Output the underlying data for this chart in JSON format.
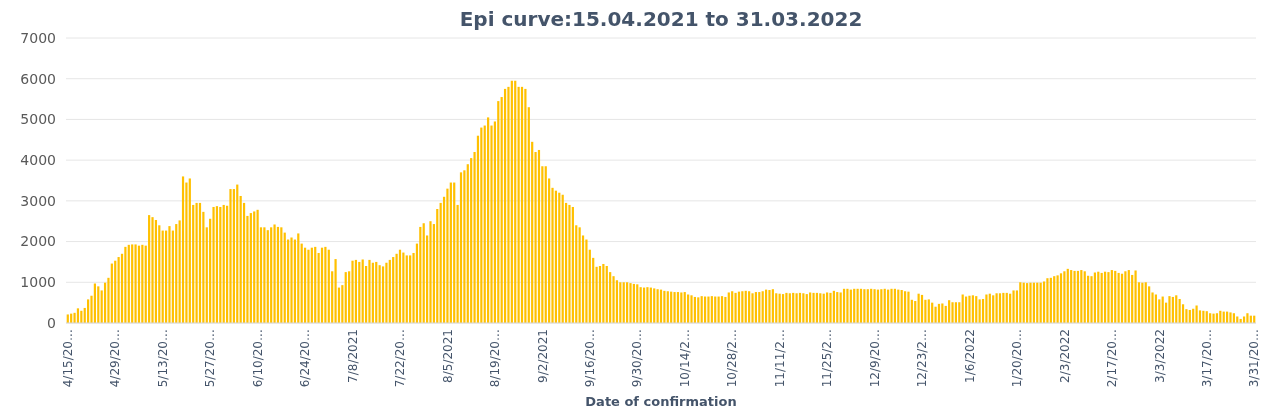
{
  "chart_data": {
    "type": "bar",
    "title": "Epi curve:15.04.2021  to 31.03.2022",
    "xlabel": "Date of confirmation",
    "categories": [
      "4/15/20…",
      null,
      null,
      null,
      null,
      null,
      null,
      null,
      null,
      null,
      null,
      null,
      null,
      null,
      "4/29/20…",
      null,
      null,
      null,
      null,
      null,
      null,
      null,
      null,
      null,
      null,
      null,
      null,
      null,
      "5/13/20…",
      null,
      null,
      null,
      null,
      null,
      null,
      null,
      null,
      null,
      null,
      null,
      null,
      null,
      "5/27/20…",
      null,
      null,
      null,
      null,
      null,
      null,
      null,
      null,
      null,
      null,
      null,
      null,
      null,
      "6/10/20…",
      null,
      null,
      null,
      null,
      null,
      null,
      null,
      null,
      null,
      null,
      null,
      null,
      null,
      "6/24/20…",
      null,
      null,
      null,
      null,
      null,
      null,
      null,
      null,
      null,
      null,
      null,
      null,
      null,
      "7/8/2021",
      null,
      null,
      null,
      null,
      null,
      null,
      null,
      null,
      null,
      null,
      null,
      null,
      null,
      "7/22/20…",
      null,
      null,
      null,
      null,
      null,
      null,
      null,
      null,
      null,
      null,
      null,
      null,
      null,
      "8/5/2021",
      null,
      null,
      null,
      null,
      null,
      null,
      null,
      null,
      null,
      null,
      null,
      null,
      null,
      "8/19/20…",
      null,
      null,
      null,
      null,
      null,
      null,
      null,
      null,
      null,
      null,
      null,
      null,
      null,
      "9/2/2021",
      null,
      null,
      null,
      null,
      null,
      null,
      null,
      null,
      null,
      null,
      null,
      null,
      null,
      "9/16/20…",
      null,
      null,
      null,
      null,
      null,
      null,
      null,
      null,
      null,
      null,
      null,
      null,
      null,
      "9/30/20…",
      null,
      null,
      null,
      null,
      null,
      null,
      null,
      null,
      null,
      null,
      null,
      null,
      null,
      "10/14/2…",
      null,
      null,
      null,
      null,
      null,
      null,
      null,
      null,
      null,
      null,
      null,
      null,
      null,
      "10/28/2…",
      null,
      null,
      null,
      null,
      null,
      null,
      null,
      null,
      null,
      null,
      null,
      null,
      null,
      "11/11/2…",
      null,
      null,
      null,
      null,
      null,
      null,
      null,
      null,
      null,
      null,
      null,
      null,
      null,
      "11/25/2…",
      null,
      null,
      null,
      null,
      null,
      null,
      null,
      null,
      null,
      null,
      null,
      null,
      null,
      "12/9/20…",
      null,
      null,
      null,
      null,
      null,
      null,
      null,
      null,
      null,
      null,
      null,
      null,
      null,
      "12/23/2…",
      null,
      null,
      null,
      null,
      null,
      null,
      null,
      null,
      null,
      null,
      null,
      null,
      null,
      "1/6/2022",
      null,
      null,
      null,
      null,
      null,
      null,
      null,
      null,
      null,
      null,
      null,
      null,
      null,
      "1/20/20…",
      null,
      null,
      null,
      null,
      null,
      null,
      null,
      null,
      null,
      null,
      null,
      null,
      null,
      "2/3/2022",
      null,
      null,
      null,
      null,
      null,
      null,
      null,
      null,
      null,
      null,
      null,
      null,
      null,
      "2/17/20…",
      null,
      null,
      null,
      null,
      null,
      null,
      null,
      null,
      null,
      null,
      null,
      null,
      null,
      "3/3/2022",
      null,
      null,
      null,
      null,
      null,
      null,
      null,
      null,
      null,
      null,
      null,
      null,
      null,
      "3/17/20…",
      null,
      null,
      null,
      null,
      null,
      null,
      null,
      null,
      null,
      null,
      null,
      null,
      null,
      "3/31/20…"
    ],
    "values": [
      210,
      230,
      250,
      360,
      300,
      370,
      580,
      670,
      970,
      900,
      800,
      990,
      1110,
      1460,
      1530,
      1620,
      1700,
      1870,
      1920,
      1930,
      1930,
      1900,
      1920,
      1900,
      2650,
      2600,
      2530,
      2400,
      2270,
      2270,
      2380,
      2270,
      2430,
      2520,
      3600,
      3450,
      3550,
      2900,
      2950,
      2950,
      2730,
      2350,
      2560,
      2850,
      2870,
      2850,
      2900,
      2880,
      3290,
      3290,
      3400,
      3120,
      2950,
      2630,
      2700,
      2740,
      2780,
      2350,
      2350,
      2280,
      2350,
      2420,
      2360,
      2350,
      2220,
      2050,
      2100,
      2050,
      2200,
      1950,
      1850,
      1800,
      1850,
      1870,
      1720,
      1850,
      1870,
      1800,
      1270,
      1570,
      870,
      930,
      1250,
      1270,
      1530,
      1550,
      1500,
      1560,
      1400,
      1550,
      1480,
      1500,
      1420,
      1390,
      1480,
      1550,
      1620,
      1700,
      1800,
      1730,
      1660,
      1660,
      1720,
      1950,
      2360,
      2450,
      2150,
      2500,
      2430,
      2800,
      2950,
      3100,
      3300,
      3450,
      3450,
      2900,
      3700,
      3750,
      3900,
      4050,
      4200,
      4600,
      4800,
      4850,
      5050,
      4850,
      4950,
      5450,
      5550,
      5750,
      5800,
      5950,
      5950,
      5800,
      5800,
      5750,
      5300,
      4450,
      4200,
      4250,
      3850,
      3850,
      3550,
      3320,
      3250,
      3200,
      3150,
      2950,
      2900,
      2850,
      2400,
      2350,
      2150,
      2050,
      1800,
      1600,
      1380,
      1400,
      1450,
      1400,
      1250,
      1150,
      1050,
      1000,
      1000,
      1000,
      980,
      960,
      950,
      880,
      870,
      880,
      870,
      850,
      830,
      820,
      790,
      780,
      770,
      760,
      760,
      750,
      760,
      700,
      680,
      640,
      630,
      660,
      650,
      650,
      660,
      650,
      650,
      660,
      640,
      750,
      780,
      740,
      770,
      780,
      790,
      780,
      730,
      760,
      760,
      780,
      820,
      810,
      830,
      730,
      720,
      710,
      740,
      730,
      740,
      730,
      740,
      730,
      710,
      750,
      740,
      740,
      730,
      720,
      750,
      740,
      790,
      760,
      750,
      840,
      840,
      820,
      840,
      840,
      840,
      830,
      830,
      840,
      830,
      820,
      830,
      840,
      820,
      840,
      840,
      820,
      810,
      780,
      770,
      570,
      540,
      720,
      690,
      570,
      580,
      500,
      400,
      470,
      480,
      420,
      560,
      510,
      510,
      510,
      700,
      650,
      670,
      680,
      660,
      580,
      590,
      700,
      720,
      680,
      730,
      730,
      740,
      740,
      720,
      800,
      800,
      1000,
      990,
      980,
      990,
      990,
      990,
      990,
      1020,
      1100,
      1110,
      1150,
      1170,
      1220,
      1270,
      1330,
      1300,
      1280,
      1280,
      1300,
      1270,
      1160,
      1150,
      1240,
      1260,
      1230,
      1260,
      1250,
      1300,
      1280,
      1230,
      1210,
      1270,
      1300,
      1180,
      1290,
      1000,
      990,
      1000,
      900,
      750,
      700,
      580,
      650,
      500,
      660,
      640,
      680,
      590,
      460,
      340,
      320,
      350,
      430,
      310,
      300,
      290,
      240,
      230,
      240,
      300,
      280,
      280,
      260,
      240,
      160,
      100,
      160,
      240,
      180,
      180
    ],
    "color": "#ffc000",
    "ylim": [
      0,
      7000
    ],
    "yticks": [
      0,
      1000,
      2000,
      3000,
      4000,
      5000,
      6000,
      7000
    ],
    "grid": "y"
  }
}
